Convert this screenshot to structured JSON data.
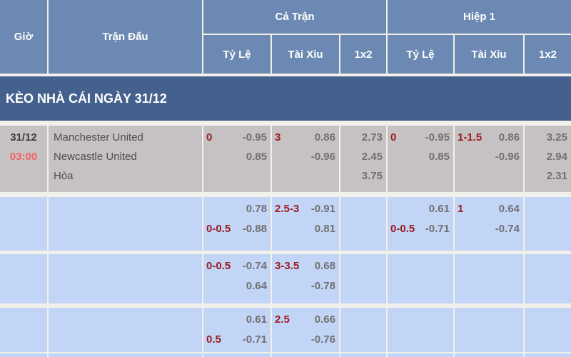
{
  "header": {
    "time_label": "Giờ",
    "match_label": "Trận Đấu",
    "full_match_label": "Cả Trận",
    "first_half_label": "Hiệp 1",
    "handicap_label": "Tỷ Lệ",
    "over_under_label": "Tài Xỉu",
    "one_x_two_label": "1x2"
  },
  "banner": {
    "title": "KÈO NHÀ CÁI NGÀY 31/12"
  },
  "rows": [
    {
      "date": "31/12",
      "time": "03:00",
      "teams": [
        "Manchester United",
        "Newcastle United",
        "Hòa"
      ],
      "ft_hc": [
        {
          "hc": "0",
          "v": "-0.95"
        },
        {
          "hc": "",
          "v": "0.85"
        }
      ],
      "ft_ou": [
        {
          "hc": "3",
          "v": "0.86"
        },
        {
          "hc": "",
          "v": "-0.96"
        }
      ],
      "ft_1x2": [
        "2.73",
        "2.45",
        "3.75"
      ],
      "h1_hc": [
        {
          "hc": "0",
          "v": "-0.95"
        },
        {
          "hc": "",
          "v": "0.85"
        }
      ],
      "h1_ou": [
        {
          "hc": "1-1.5",
          "v": "0.86"
        },
        {
          "hc": "",
          "v": "-0.96"
        }
      ],
      "h1_1x2": [
        "3.25",
        "2.94",
        "2.31"
      ]
    },
    {
      "date": "",
      "time": "",
      "teams": [
        "",
        "",
        ""
      ],
      "ft_hc": [
        {
          "hc": "",
          "v": "0.78"
        },
        {
          "hc": "0-0.5",
          "v": "-0.88"
        }
      ],
      "ft_ou": [
        {
          "hc": "2.5-3",
          "v": "-0.91"
        },
        {
          "hc": "",
          "v": "0.81"
        }
      ],
      "ft_1x2": [
        "",
        "",
        ""
      ],
      "h1_hc": [
        {
          "hc": "",
          "v": "0.61"
        },
        {
          "hc": "0-0.5",
          "v": "-0.71"
        }
      ],
      "h1_ou": [
        {
          "hc": "1",
          "v": "0.64"
        },
        {
          "hc": "",
          "v": "-0.74"
        }
      ],
      "h1_1x2": [
        "",
        "",
        ""
      ]
    },
    {
      "date": "",
      "time": "",
      "teams": [
        "",
        "",
        ""
      ],
      "ft_hc": [
        {
          "hc": "0-0.5",
          "v": "-0.74"
        },
        {
          "hc": "",
          "v": "0.64"
        }
      ],
      "ft_ou": [
        {
          "hc": "3-3.5",
          "v": "0.68"
        },
        {
          "hc": "",
          "v": "-0.78"
        }
      ],
      "ft_1x2": [
        "",
        "",
        ""
      ],
      "h1_hc": [
        {
          "hc": "",
          "v": ""
        },
        {
          "hc": "",
          "v": ""
        }
      ],
      "h1_ou": [
        {
          "hc": "",
          "v": ""
        },
        {
          "hc": "",
          "v": ""
        }
      ],
      "h1_1x2": [
        "",
        "",
        ""
      ]
    },
    {
      "date": "",
      "time": "",
      "teams": [
        "",
        "",
        ""
      ],
      "ft_hc": [
        {
          "hc": "",
          "v": "0.61"
        },
        {
          "hc": "0.5",
          "v": "-0.71"
        }
      ],
      "ft_ou": [
        {
          "hc": "2.5",
          "v": "0.66"
        },
        {
          "hc": "",
          "v": "-0.76"
        }
      ],
      "ft_1x2": [
        "",
        "",
        ""
      ],
      "h1_hc": [
        {
          "hc": "",
          "v": ""
        },
        {
          "hc": "",
          "v": ""
        }
      ],
      "h1_ou": [
        {
          "hc": "",
          "v": ""
        },
        {
          "hc": "",
          "v": ""
        }
      ],
      "h1_1x2": [
        "",
        "",
        ""
      ]
    }
  ],
  "colors": {
    "header_bg": "#6b89b3",
    "banner_bg": "#44618e",
    "row_gray_bg": "#c6c2c3",
    "row_blue_bg": "#c3d5f7",
    "handicap_red": "#9a1a1d",
    "time_red": "#f25f5f",
    "odds_gray": "#707070"
  }
}
